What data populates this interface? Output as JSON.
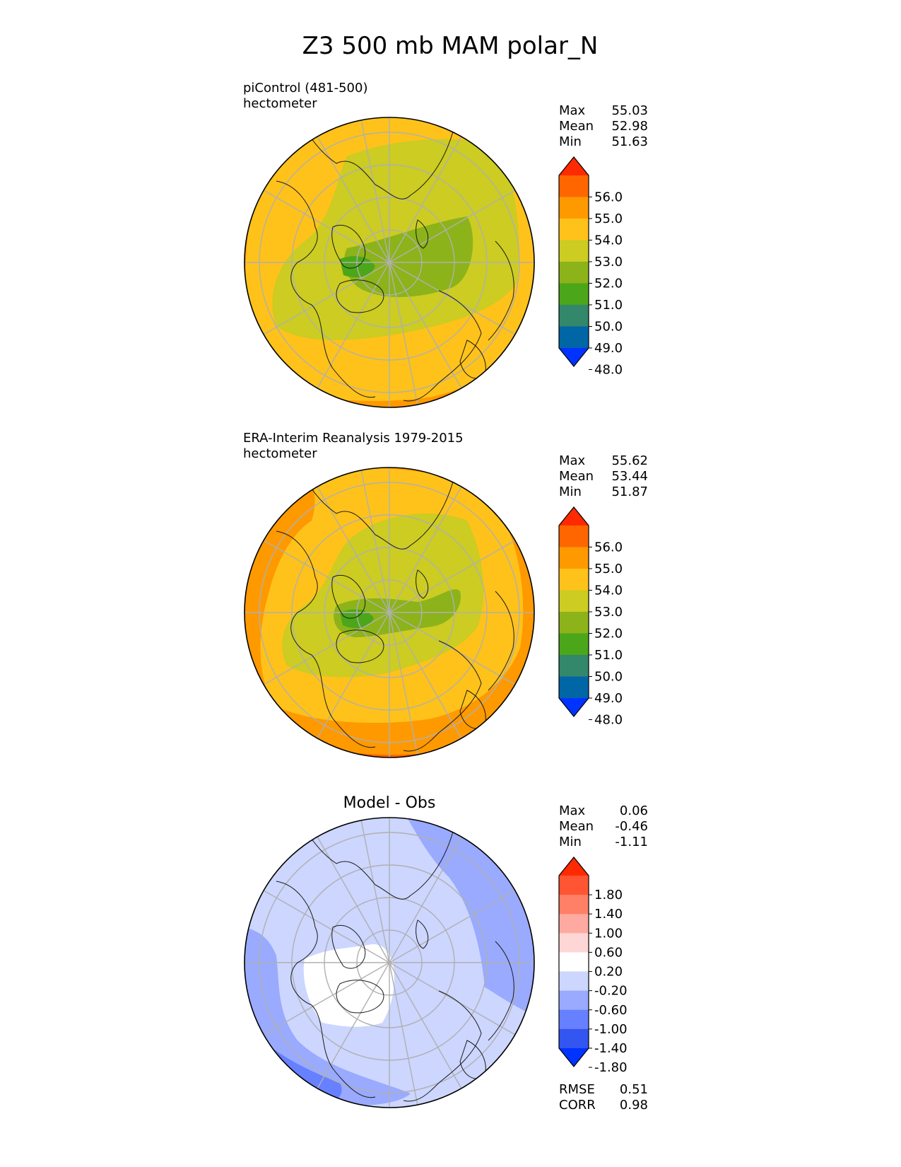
{
  "title": "Z3 500 mb MAM polar_N",
  "colors": {
    "grid": "#b0b0b0",
    "coast": "#1a1a1a",
    "abs_levels": [
      "#0033ff",
      "#0066a6",
      "#33876a",
      "#4ca619",
      "#8cb31a",
      "#cccc22",
      "#ffc21a",
      "#ff9900",
      "#ff6600",
      "#ff2a00"
    ],
    "diff_levels": [
      "#0033ff",
      "#3355f0",
      "#6680ff",
      "#99aaff",
      "#ccd6ff",
      "#ffffff",
      "#ffd6d6",
      "#ffaaa0",
      "#ff8066",
      "#ff5533",
      "#ff2a00"
    ]
  },
  "panels": [
    {
      "id": "model",
      "title": "",
      "subtitle": "piControl (481-500)",
      "units": "hectometer",
      "stats": [
        {
          "label": "Max",
          "value": "55.03"
        },
        {
          "label": "Mean",
          "value": "52.98"
        },
        {
          "label": "Min",
          "value": "51.63"
        }
      ],
      "colorbar": [
        "56.0",
        "55.0",
        "54.0",
        "53.0",
        "52.0",
        "51.0",
        "50.0",
        "49.0",
        "48.0"
      ],
      "footer_stats": []
    },
    {
      "id": "obs",
      "title": "",
      "subtitle": "ERA-Interim Reanalysis 1979-2015",
      "units": "hectometer",
      "stats": [
        {
          "label": "Max",
          "value": "55.62"
        },
        {
          "label": "Mean",
          "value": "53.44"
        },
        {
          "label": "Min",
          "value": "51.87"
        }
      ],
      "colorbar": [
        "56.0",
        "55.0",
        "54.0",
        "53.0",
        "52.0",
        "51.0",
        "50.0",
        "49.0",
        "48.0"
      ],
      "footer_stats": []
    },
    {
      "id": "diff",
      "title": "Model - Obs",
      "subtitle": "",
      "units": "",
      "stats": [
        {
          "label": "Max",
          "value": "0.06"
        },
        {
          "label": "Mean",
          "value": "-0.46"
        },
        {
          "label": "Min",
          "value": "-1.11"
        }
      ],
      "colorbar": [
        "1.80",
        "1.40",
        "1.00",
        "0.60",
        "0.20",
        "-0.20",
        "-0.60",
        "-1.00",
        "-1.40",
        "-1.80"
      ],
      "footer_stats": [
        {
          "label": "RMSE",
          "value": "0.51"
        },
        {
          "label": "CORR",
          "value": "0.98"
        }
      ]
    }
  ],
  "chart_data": {
    "type": "heatmap",
    "projection": "north polar stereographic",
    "variable": "Z3 500 mb",
    "season": "MAM",
    "grid": true,
    "panels": [
      {
        "name": "piControl (481-500)",
        "units": "hectometer",
        "max": 55.03,
        "mean": 52.98,
        "min": 51.63,
        "levels": [
          48.0,
          49.0,
          50.0,
          51.0,
          52.0,
          53.0,
          54.0,
          55.0,
          56.0
        ],
        "extend": "both"
      },
      {
        "name": "ERA-Interim Reanalysis 1979-2015",
        "units": "hectometer",
        "max": 55.62,
        "mean": 53.44,
        "min": 51.87,
        "levels": [
          48.0,
          49.0,
          50.0,
          51.0,
          52.0,
          53.0,
          54.0,
          55.0,
          56.0
        ],
        "extend": "both"
      },
      {
        "name": "Model - Obs",
        "max": 0.06,
        "mean": -0.46,
        "min": -1.11,
        "rmse": 0.51,
        "corr": 0.98,
        "levels": [
          -1.8,
          -1.4,
          -1.0,
          -0.6,
          -0.2,
          0.2,
          0.6,
          1.0,
          1.4,
          1.8
        ],
        "extend": "both"
      }
    ]
  }
}
